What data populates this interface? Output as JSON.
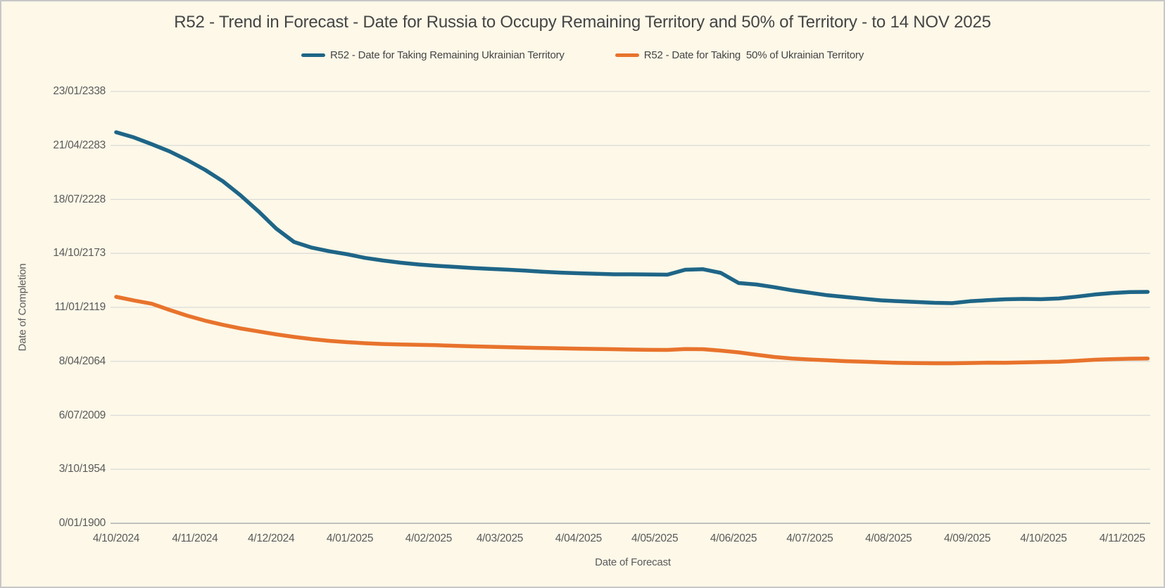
{
  "window": {
    "background_color": "#fdf8e8",
    "border_color": "#c8c8c8",
    "grid_color": "#dadad8",
    "axis_line_color": "#c2c2c0"
  },
  "chart_data": {
    "type": "line",
    "title": "R52 - Trend in Forecast - Date for Russia to Occupy Remaining Territory and 50% of Territory - to 14 NOV 2025",
    "xlabel": "Date of Forecast",
    "ylabel": "Date of Completion",
    "legend_position": "top",
    "grid": "horizontal",
    "x_unit": "days since first forecast (4/10/2024); weekly forecast points to 14/11/2025",
    "y_unit": "Excel serial days since 0/01/1900; axis ticks every 20000 days",
    "x_tick_labels": [
      "4/10/2024",
      "4/11/2024",
      "4/12/2024",
      "4/01/2025",
      "4/02/2025",
      "4/03/2025",
      "4/04/2025",
      "4/05/2025",
      "4/06/2025",
      "4/07/2025",
      "4/08/2025",
      "4/09/2025",
      "4/10/2025",
      "4/11/2025"
    ],
    "x_tick_days": [
      0,
      31,
      61,
      92,
      123,
      151,
      182,
      212,
      243,
      273,
      304,
      335,
      365,
      396
    ],
    "xlim_days": [
      0,
      407
    ],
    "y_tick_labels": [
      "0/01/1900",
      "3/10/1954",
      "6/07/2009",
      "8/04/2064",
      "11/01/2119",
      "14/10/2173",
      "18/07/2228",
      "21/04/2283",
      "23/01/2338"
    ],
    "y_tick_values": [
      0,
      20000,
      40000,
      60000,
      80000,
      100000,
      120000,
      140000,
      160000
    ],
    "ylim": [
      0,
      166000
    ],
    "series": [
      {
        "name": "R52 - Date for Taking Remaining Ukrainian Territory",
        "color": "#1e6587",
        "x_days": [
          0,
          7,
          14,
          21,
          28,
          35,
          42,
          49,
          56,
          63,
          70,
          77,
          84,
          91,
          98,
          105,
          112,
          119,
          126,
          133,
          140,
          147,
          154,
          161,
          168,
          175,
          182,
          189,
          196,
          203,
          210,
          217,
          224,
          231,
          238,
          245,
          252,
          259,
          266,
          273,
          280,
          287,
          294,
          301,
          308,
          315,
          322,
          329,
          336,
          343,
          350,
          357,
          364,
          371,
          378,
          385,
          392,
          399,
          406
        ],
        "values": [
          144886,
          142958,
          140456,
          137798,
          134567,
          130944,
          126723,
          121459,
          115596,
          109186,
          104234,
          102124,
          100769,
          99674,
          98319,
          97355,
          96547,
          95896,
          95400,
          95010,
          94593,
          94280,
          93967,
          93602,
          93186,
          92873,
          92638,
          92456,
          92247,
          92247,
          92169,
          92117,
          93941,
          94124,
          92769,
          89016,
          88469,
          87479,
          86332,
          85420,
          84482,
          83857,
          83205,
          82606,
          82267,
          81980,
          81694,
          81563,
          82267,
          82658,
          82997,
          83127,
          83023,
          83283,
          83961,
          84743,
          85316,
          85681,
          85733
        ]
      },
      {
        "name": "R52 - Date for Taking  50% of Ukrainian Territory",
        "color": "#e8732c",
        "x_days": [
          0,
          7,
          14,
          21,
          28,
          35,
          42,
          49,
          56,
          63,
          70,
          77,
          84,
          91,
          98,
          105,
          112,
          119,
          126,
          133,
          140,
          147,
          154,
          161,
          168,
          175,
          182,
          189,
          196,
          203,
          210,
          217,
          224,
          231,
          238,
          245,
          252,
          259,
          266,
          273,
          280,
          287,
          294,
          301,
          308,
          315,
          322,
          329,
          336,
          343,
          350,
          357,
          364,
          371,
          378,
          385,
          392,
          399,
          406
        ],
        "values": [
          83909,
          82554,
          81355,
          79062,
          76899,
          75075,
          73537,
          72182,
          71088,
          69993,
          69055,
          68247,
          67596,
          67101,
          66710,
          66423,
          66267,
          66137,
          65980,
          65772,
          65563,
          65407,
          65251,
          65094,
          64938,
          64808,
          64677,
          64599,
          64495,
          64365,
          64261,
          64234,
          64573,
          64495,
          63974,
          63322,
          62436,
          61629,
          61029,
          60690,
          60378,
          60065,
          59857,
          59648,
          59440,
          59335,
          59283,
          59283,
          59388,
          59518,
          59492,
          59622,
          59752,
          59883,
          60195,
          60586,
          60821,
          60977,
          61055
        ]
      }
    ]
  }
}
